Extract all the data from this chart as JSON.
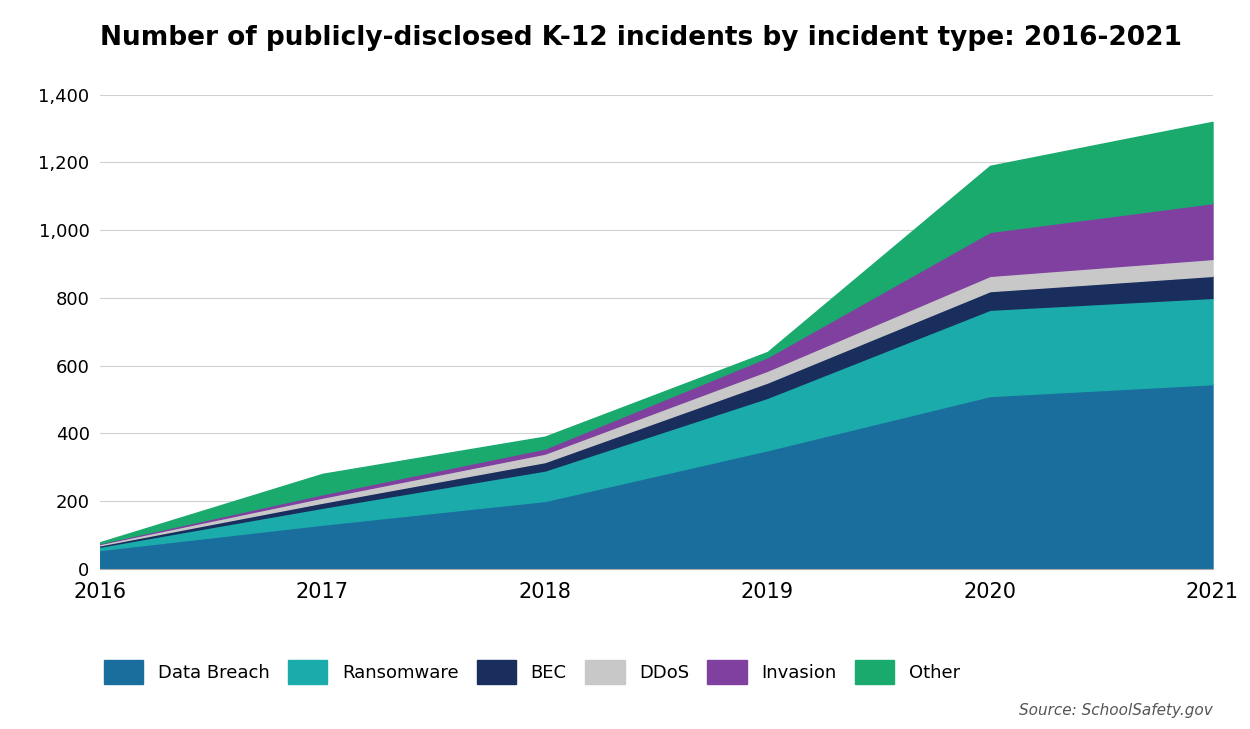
{
  "title": "Number of publicly-disclosed K-12 incidents by incident type: 2016-2021",
  "years": [
    2016,
    2017,
    2018,
    2019,
    2020,
    2021
  ],
  "series": {
    "Data Breach": [
      55,
      130,
      200,
      350,
      510,
      545
    ],
    "Ransomware": [
      10,
      50,
      90,
      155,
      255,
      255
    ],
    "BEC": [
      4,
      15,
      25,
      45,
      55,
      65
    ],
    "DDoS": [
      4,
      15,
      25,
      35,
      45,
      50
    ],
    "Invasion": [
      2,
      10,
      15,
      40,
      130,
      165
    ],
    "Other": [
      3,
      60,
      35,
      15,
      195,
      240
    ]
  },
  "colors": {
    "Data Breach": "#1a6e9e",
    "Ransomware": "#1aabaa",
    "BEC": "#1a2e5e",
    "DDoS": "#c8c8c8",
    "Invasion": "#8040a0",
    "Other": "#1aaa6e"
  },
  "legend_labels": [
    "Data Breach",
    "Ransomware",
    "BEC",
    "DDoS",
    "Invasion",
    "Other"
  ],
  "ylim": [
    0,
    1400
  ],
  "yticks": [
    0,
    200,
    400,
    600,
    800,
    1000,
    1200,
    1400
  ],
  "source_text": "Source: SchoolSafety.gov",
  "background_color": "#ffffff",
  "grid_color": "#d0d0d0"
}
